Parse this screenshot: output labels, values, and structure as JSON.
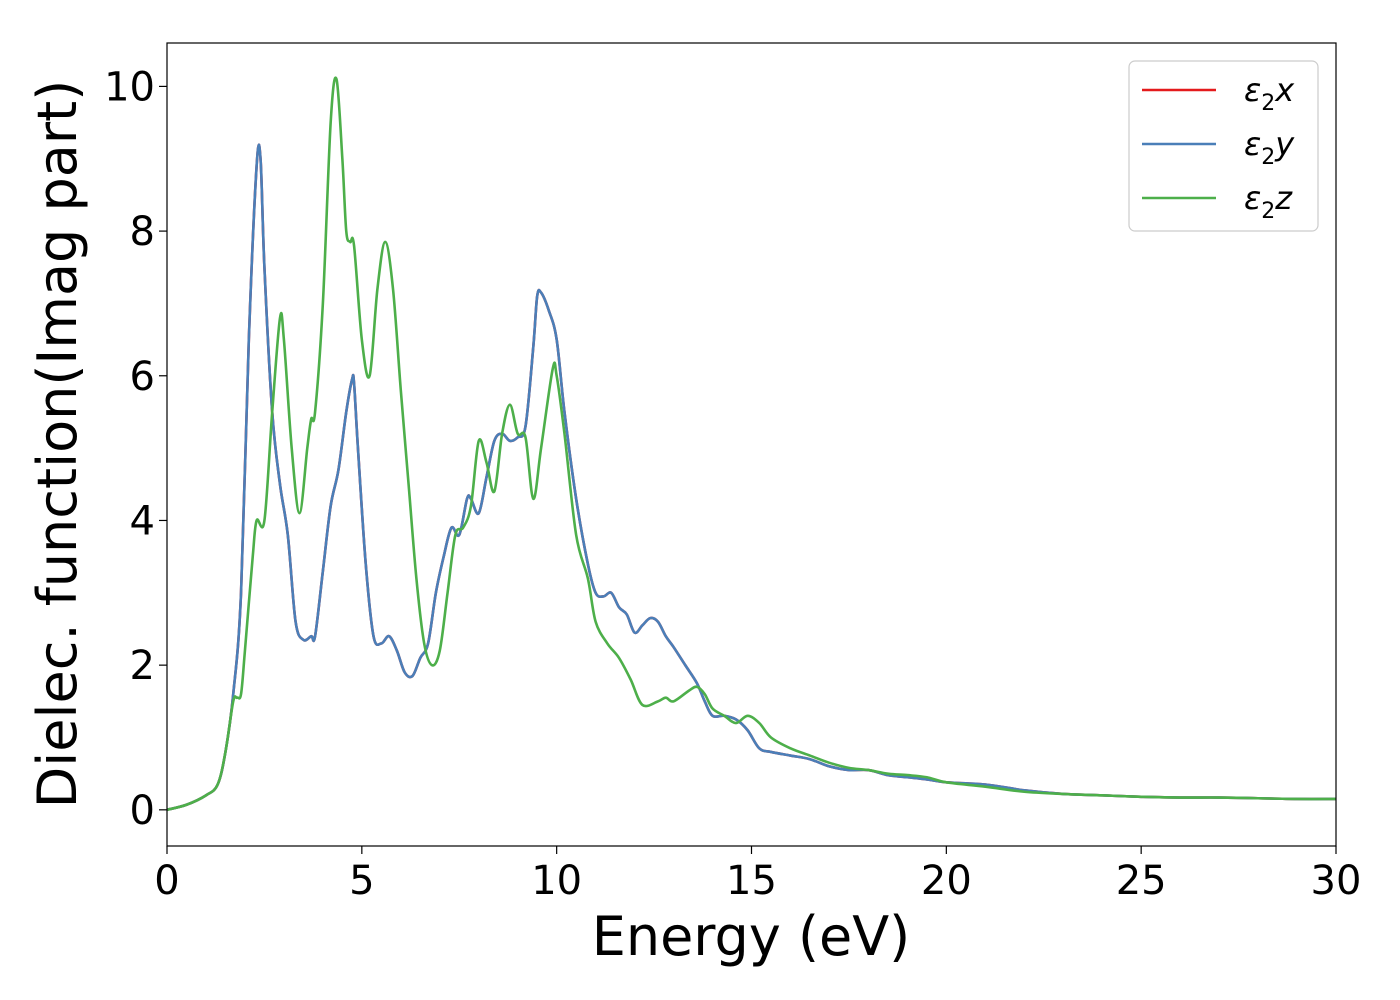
{
  "chart_data": {
    "type": "line",
    "title": "",
    "xlabel": "Energy (eV)",
    "ylabel": "Dielec. function(Imag part)",
    "xlim": [
      0,
      30
    ],
    "ylim": [
      -0.5,
      10.6
    ],
    "xticks": [
      0,
      5,
      10,
      15,
      20,
      25,
      30
    ],
    "yticks": [
      0,
      2,
      4,
      6,
      8,
      10
    ],
    "grid": false,
    "legend_position": "top-right",
    "series": [
      {
        "name": "ε2x",
        "legend_base": "ε",
        "legend_sub": "2",
        "legend_tail": "x",
        "color": "#e41a1c",
        "x": [
          0,
          0.5,
          1.0,
          1.3,
          1.5,
          1.7,
          1.9,
          2.1,
          2.3,
          2.4,
          2.5,
          2.7,
          2.9,
          3.1,
          3.3,
          3.5,
          3.7,
          3.8,
          4.0,
          4.2,
          4.4,
          4.6,
          4.75,
          4.8,
          4.9,
          5.1,
          5.3,
          5.5,
          5.7,
          5.9,
          6.1,
          6.3,
          6.5,
          6.7,
          6.9,
          7.1,
          7.3,
          7.5,
          7.7,
          7.8,
          8.0,
          8.2,
          8.4,
          8.6,
          8.8,
          9.0,
          9.2,
          9.4,
          9.5,
          9.6,
          9.8,
          10.0,
          10.2,
          10.5,
          10.8,
          11.0,
          11.2,
          11.4,
          11.6,
          11.8,
          12.0,
          12.2,
          12.4,
          12.6,
          12.8,
          13.0,
          13.3,
          13.6,
          13.8,
          14.0,
          14.3,
          14.6,
          14.9,
          15.2,
          15.5,
          16.0,
          16.5,
          17.0,
          17.5,
          18.0,
          18.5,
          19.0,
          19.5,
          20.0,
          21.0,
          22.0,
          23.0,
          24.0,
          25.0,
          26.0,
          27.0,
          28.0,
          29.0,
          30.0
        ],
        "values": [
          0.0,
          0.07,
          0.2,
          0.35,
          0.8,
          1.6,
          3.0,
          6.5,
          8.9,
          9.0,
          7.5,
          5.5,
          4.5,
          3.8,
          2.6,
          2.35,
          2.4,
          2.4,
          3.3,
          4.2,
          4.7,
          5.5,
          5.95,
          5.9,
          5.0,
          3.4,
          2.4,
          2.3,
          2.4,
          2.2,
          1.9,
          1.85,
          2.1,
          2.3,
          3.0,
          3.5,
          3.9,
          3.8,
          4.3,
          4.3,
          4.1,
          4.6,
          5.1,
          5.2,
          5.1,
          5.15,
          5.3,
          6.4,
          7.1,
          7.15,
          6.9,
          6.5,
          5.5,
          4.3,
          3.4,
          3.0,
          2.95,
          3.0,
          2.8,
          2.7,
          2.45,
          2.55,
          2.65,
          2.6,
          2.4,
          2.25,
          2.0,
          1.75,
          1.5,
          1.3,
          1.3,
          1.25,
          1.1,
          0.85,
          0.8,
          0.75,
          0.7,
          0.6,
          0.55,
          0.55,
          0.48,
          0.45,
          0.42,
          0.38,
          0.35,
          0.27,
          0.22,
          0.2,
          0.18,
          0.17,
          0.17,
          0.16,
          0.15,
          0.15
        ]
      },
      {
        "name": "ε2y",
        "legend_base": "ε",
        "legend_sub": "2",
        "legend_tail": "y",
        "color": "#4a7fb8",
        "x": [
          0,
          0.5,
          1.0,
          1.3,
          1.5,
          1.7,
          1.9,
          2.1,
          2.3,
          2.4,
          2.5,
          2.7,
          2.9,
          3.1,
          3.3,
          3.5,
          3.7,
          3.8,
          4.0,
          4.2,
          4.4,
          4.6,
          4.75,
          4.8,
          4.9,
          5.1,
          5.3,
          5.5,
          5.7,
          5.9,
          6.1,
          6.3,
          6.5,
          6.7,
          6.9,
          7.1,
          7.3,
          7.5,
          7.7,
          7.8,
          8.0,
          8.2,
          8.4,
          8.6,
          8.8,
          9.0,
          9.2,
          9.4,
          9.5,
          9.6,
          9.8,
          10.0,
          10.2,
          10.5,
          10.8,
          11.0,
          11.2,
          11.4,
          11.6,
          11.8,
          12.0,
          12.2,
          12.4,
          12.6,
          12.8,
          13.0,
          13.3,
          13.6,
          13.8,
          14.0,
          14.3,
          14.6,
          14.9,
          15.2,
          15.5,
          16.0,
          16.5,
          17.0,
          17.5,
          18.0,
          18.5,
          19.0,
          19.5,
          20.0,
          21.0,
          22.0,
          23.0,
          24.0,
          25.0,
          26.0,
          27.0,
          28.0,
          29.0,
          30.0
        ],
        "values": [
          0.0,
          0.07,
          0.2,
          0.35,
          0.8,
          1.6,
          3.0,
          6.5,
          8.9,
          9.0,
          7.5,
          5.5,
          4.5,
          3.8,
          2.6,
          2.35,
          2.4,
          2.4,
          3.3,
          4.2,
          4.7,
          5.5,
          5.95,
          5.9,
          5.0,
          3.4,
          2.4,
          2.3,
          2.4,
          2.2,
          1.9,
          1.85,
          2.1,
          2.3,
          3.0,
          3.5,
          3.9,
          3.8,
          4.3,
          4.3,
          4.1,
          4.6,
          5.1,
          5.2,
          5.1,
          5.15,
          5.3,
          6.4,
          7.1,
          7.15,
          6.9,
          6.5,
          5.5,
          4.3,
          3.4,
          3.0,
          2.95,
          3.0,
          2.8,
          2.7,
          2.45,
          2.55,
          2.65,
          2.6,
          2.4,
          2.25,
          2.0,
          1.75,
          1.5,
          1.3,
          1.3,
          1.25,
          1.1,
          0.85,
          0.8,
          0.75,
          0.7,
          0.6,
          0.55,
          0.55,
          0.48,
          0.45,
          0.42,
          0.38,
          0.35,
          0.27,
          0.22,
          0.2,
          0.18,
          0.17,
          0.17,
          0.16,
          0.15,
          0.15
        ]
      },
      {
        "name": "ε2z",
        "legend_base": "ε",
        "legend_sub": "2",
        "legend_tail": "z",
        "color": "#4daf4a",
        "x": [
          0,
          0.5,
          1.0,
          1.3,
          1.5,
          1.7,
          1.8,
          1.9,
          2.0,
          2.2,
          2.3,
          2.5,
          2.7,
          2.9,
          3.0,
          3.2,
          3.4,
          3.6,
          3.7,
          3.8,
          4.0,
          4.2,
          4.35,
          4.5,
          4.6,
          4.7,
          4.8,
          5.0,
          5.2,
          5.4,
          5.6,
          5.8,
          6.0,
          6.2,
          6.4,
          6.6,
          6.8,
          7.0,
          7.2,
          7.4,
          7.6,
          7.8,
          8.0,
          8.2,
          8.4,
          8.6,
          8.8,
          9.0,
          9.2,
          9.4,
          9.6,
          9.9,
          10.0,
          10.2,
          10.5,
          10.8,
          11.0,
          11.3,
          11.6,
          11.9,
          12.2,
          12.6,
          12.8,
          13.0,
          13.4,
          13.6,
          13.8,
          14.0,
          14.3,
          14.6,
          14.9,
          15.2,
          15.5,
          16.0,
          16.5,
          17.0,
          17.5,
          18.0,
          18.5,
          19.0,
          19.5,
          20.0,
          21.0,
          22.0,
          23.0,
          24.0,
          25.0,
          26.0,
          27.0,
          28.0,
          29.0,
          30.0
        ],
        "values": [
          0.0,
          0.07,
          0.2,
          0.35,
          0.8,
          1.5,
          1.55,
          1.6,
          2.2,
          3.5,
          4.0,
          4.0,
          5.5,
          6.8,
          6.5,
          5.0,
          4.1,
          5.0,
          5.4,
          5.5,
          7.0,
          9.5,
          10.1,
          9.0,
          8.0,
          7.85,
          7.8,
          6.5,
          6.0,
          7.2,
          7.85,
          7.2,
          5.8,
          4.5,
          3.2,
          2.3,
          2.0,
          2.2,
          3.0,
          3.8,
          3.9,
          4.2,
          5.1,
          4.8,
          4.4,
          5.2,
          5.6,
          5.2,
          5.15,
          4.3,
          5.0,
          6.1,
          6.0,
          5.2,
          3.8,
          3.2,
          2.6,
          2.3,
          2.1,
          1.8,
          1.45,
          1.5,
          1.55,
          1.5,
          1.65,
          1.7,
          1.6,
          1.4,
          1.3,
          1.2,
          1.3,
          1.2,
          1.0,
          0.85,
          0.75,
          0.65,
          0.58,
          0.55,
          0.5,
          0.48,
          0.45,
          0.38,
          0.32,
          0.25,
          0.22,
          0.2,
          0.18,
          0.17,
          0.17,
          0.16,
          0.15,
          0.15
        ]
      }
    ]
  }
}
